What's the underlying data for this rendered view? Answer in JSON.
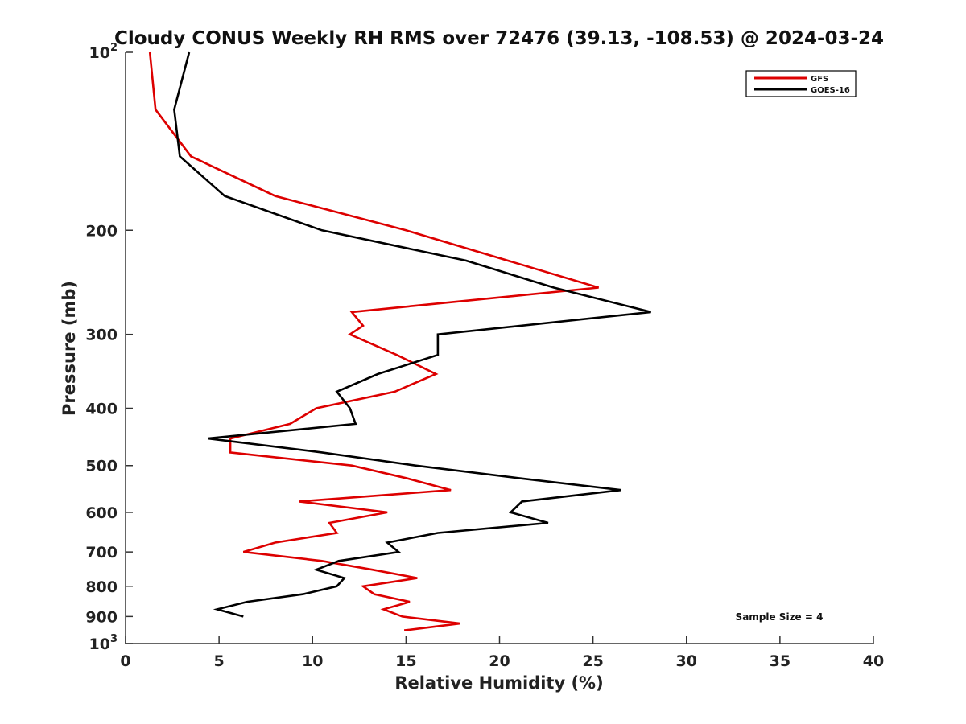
{
  "chart_data": {
    "type": "line",
    "title": "Cloudy CONUS Weekly RH RMS over 72476 (39.13, -108.53) @ 2024-03-24",
    "xlabel": "Relative Humidity (%)",
    "ylabel": "Pressure (mb)",
    "xlim": [
      0,
      40
    ],
    "ylim": [
      100,
      1000
    ],
    "y_scale": "log",
    "y_inverted": true,
    "grid": false,
    "legend_position": "top-right",
    "x_ticks": [
      "0",
      "5",
      "10",
      "15",
      "20",
      "25",
      "30",
      "35",
      "40"
    ],
    "y_ticks": [
      {
        "value": 100,
        "base": "10",
        "exp": "2"
      },
      {
        "value": 200,
        "label": "200"
      },
      {
        "value": 300,
        "label": "300"
      },
      {
        "value": 400,
        "label": "400"
      },
      {
        "value": 500,
        "label": "500"
      },
      {
        "value": 600,
        "label": "600"
      },
      {
        "value": 700,
        "label": "700"
      },
      {
        "value": 800,
        "label": "800"
      },
      {
        "value": 900,
        "label": "900"
      },
      {
        "value": 1000,
        "base": "10",
        "exp": "3"
      }
    ],
    "series": [
      {
        "name": "GFS",
        "color": "#dd0000",
        "points": [
          [
            1.3,
            100
          ],
          [
            1.6,
            125
          ],
          [
            3.5,
            150
          ],
          [
            8.0,
            175
          ],
          [
            15.0,
            200
          ],
          [
            25.3,
            250
          ],
          [
            12.1,
            275
          ],
          [
            12.7,
            290
          ],
          [
            12.0,
            300
          ],
          [
            14.5,
            325
          ],
          [
            16.6,
            350
          ],
          [
            14.4,
            375
          ],
          [
            10.2,
            400
          ],
          [
            8.8,
            425
          ],
          [
            5.6,
            450
          ],
          [
            5.6,
            475
          ],
          [
            12.1,
            500
          ],
          [
            15.0,
            525
          ],
          [
            17.4,
            550
          ],
          [
            9.3,
            575
          ],
          [
            14.0,
            600
          ],
          [
            10.9,
            625
          ],
          [
            11.3,
            650
          ],
          [
            8.0,
            675
          ],
          [
            6.3,
            700
          ],
          [
            10.5,
            725
          ],
          [
            13.2,
            750
          ],
          [
            15.6,
            775
          ],
          [
            12.7,
            800
          ],
          [
            13.3,
            825
          ],
          [
            15.2,
            850
          ],
          [
            13.8,
            875
          ],
          [
            14.8,
            900
          ],
          [
            17.9,
            925
          ],
          [
            14.9,
            950
          ]
        ]
      },
      {
        "name": "GOES-16",
        "color": "#000000",
        "points": [
          [
            3.4,
            100
          ],
          [
            2.6,
            125
          ],
          [
            2.9,
            150
          ],
          [
            5.3,
            175
          ],
          [
            10.5,
            200
          ],
          [
            18.2,
            225
          ],
          [
            22.9,
            250
          ],
          [
            28.1,
            275
          ],
          [
            16.7,
            300
          ],
          [
            16.7,
            325
          ],
          [
            13.5,
            350
          ],
          [
            11.3,
            375
          ],
          [
            12.0,
            400
          ],
          [
            12.3,
            425
          ],
          [
            4.4,
            450
          ],
          [
            10.5,
            475
          ],
          [
            15.5,
            500
          ],
          [
            21.0,
            525
          ],
          [
            26.5,
            550
          ],
          [
            21.2,
            575
          ],
          [
            20.6,
            600
          ],
          [
            22.6,
            625
          ],
          [
            16.7,
            650
          ],
          [
            14.0,
            675
          ],
          [
            14.6,
            700
          ],
          [
            11.4,
            725
          ],
          [
            10.2,
            750
          ],
          [
            11.7,
            775
          ],
          [
            11.3,
            800
          ],
          [
            9.5,
            825
          ],
          [
            6.5,
            850
          ],
          [
            4.9,
            875
          ],
          [
            6.3,
            900
          ]
        ]
      }
    ],
    "annotations": [
      {
        "text": "Sample Size = 4"
      }
    ]
  }
}
